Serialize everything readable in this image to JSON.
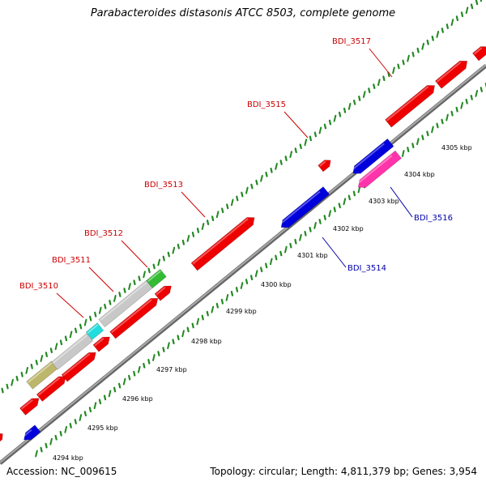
{
  "title": "Parabacteroides distasonis ATCC 8503, complete genome",
  "footer": {
    "accession": "Accession: NC_009615",
    "summary": "Topology: circular; Length: 4,811,379 bp; Genes: 3,954"
  },
  "colors": {
    "forward_gene": "#ee0000",
    "reverse_gene": "#0000dd",
    "forward_label": "#cc0000",
    "reverse_label": "#0000aa",
    "backbone": "#888888",
    "ticks": "#228822",
    "rna": "#ff33aa",
    "grey_feature": "#c8c8c8",
    "olive_feature": "#bdb76b",
    "cyan_feature": "#22dddd",
    "green_feature": "#33bb33"
  },
  "ruler": [
    "4294 kbp",
    "4295 kbp",
    "4296 kbp",
    "4297 kbp",
    "4298 kbp",
    "4299 kbp",
    "4300 kbp",
    "4301 kbp",
    "4302 kbp",
    "4303 kbp",
    "4304 kbp",
    "4305 kbp"
  ],
  "gene_labels": [
    {
      "name": "BDI_3510",
      "strand": "forward"
    },
    {
      "name": "BDI_3511",
      "strand": "forward"
    },
    {
      "name": "BDI_3512",
      "strand": "forward"
    },
    {
      "name": "BDI_3513",
      "strand": "forward"
    },
    {
      "name": "BDI_3515",
      "strand": "forward"
    },
    {
      "name": "BDI_3517",
      "strand": "forward"
    },
    {
      "name": "BDI_3514",
      "strand": "reverse"
    },
    {
      "name": "BDI_3516",
      "strand": "reverse"
    }
  ]
}
